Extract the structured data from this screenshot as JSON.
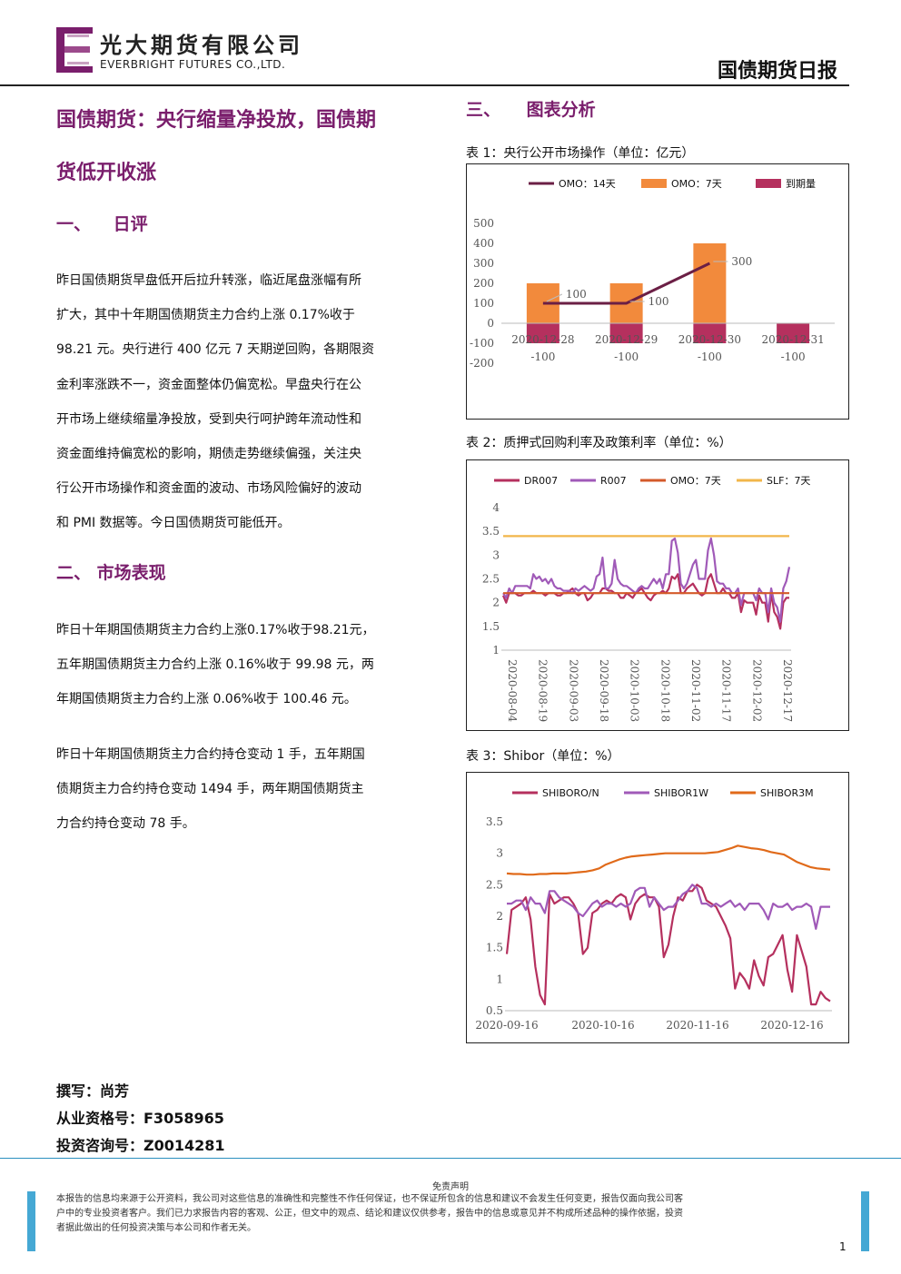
{
  "header": {
    "company_cn": "光大期货有限公司",
    "company_en": "EVERBRIGHT FUTURES CO.,LTD.",
    "report_name": "国债期货日报"
  },
  "colors": {
    "brand": "#7a1e6c",
    "footer_accent": "#45a8d4"
  },
  "left": {
    "title_line1": "国债期货：央行缩量净投放，国债期",
    "title_line2": "货低开收涨",
    "section1": {
      "num": "一、",
      "title": "日评"
    },
    "section1_lines": [
      "昨日国债期货早盘低开后拉升转涨，临近尾盘涨幅有所",
      "扩大，其中十年期国债期货主力合约上涨 0.17%收于",
      "98.21 元。央行进行 400 亿元 7 天期逆回购，各期限资",
      "金利率涨跌不一，资金面整体仍偏宽松。早盘央行在公",
      "开市场上继续缩量净投放，受到央行呵护跨年流动性和",
      "资金面维持偏宽松的影响，期债走势继续偏强，关注央",
      "行公开市场操作和资金面的波动、市场风险偏好的波动",
      "和 PMI 数据等。今日国债期货可能低开。"
    ],
    "section2": {
      "num": "二、",
      "title": "市场表现"
    },
    "section2_para1": [
      "昨日十年期国债期货主力合约上涨0.17%收于98.21元，",
      "五年期国债期货主力合约上涨 0.16%收于 99.98 元，两",
      "年期国债期货主力合约上涨 0.06%收于 100.46 元。"
    ],
    "section2_para2": [
      "昨日十年期国债期货主力合约持仓变动 1 手，五年期国",
      "债期货主力合约持仓变动 1494 手，两年期国债期货主",
      "力合约持仓变动 78 手。"
    ],
    "author": "撰写：尚芳",
    "license": "从业资格号：F3058965",
    "advisory": "投资咨询号：Z0014281"
  },
  "right": {
    "section3": {
      "num": "三、",
      "title": "图表分析"
    },
    "chart1_caption": "表 1：央行公开市场操作（单位：亿元）",
    "chart2_caption": "表 2：质押式回购利率及政策利率（单位：%）",
    "chart3_caption": "表 3：Shibor（单位：%）"
  },
  "chart_data": [
    {
      "type": "bar",
      "categories": [
        "2020-12-28",
        "2020-12-29",
        "2020-12-30",
        "2020-12-31"
      ],
      "series": [
        {
          "name": "OMO：14天",
          "kind": "line",
          "color": "#6b1f45",
          "values": [
            100,
            100,
            300,
            null
          ]
        },
        {
          "name": "OMO：7天",
          "kind": "bar",
          "color": "#f28a3c",
          "values": [
            200,
            200,
            400,
            0
          ]
        },
        {
          "name": "到期量",
          "kind": "bar",
          "color": "#b5305e",
          "values": [
            -100,
            -100,
            -100,
            -100
          ]
        }
      ],
      "data_labels": [
        {
          "text": "100",
          "category": "2020-12-28",
          "value": 100
        },
        {
          "text": "100",
          "category": "2020-12-29",
          "value": 100
        },
        {
          "text": "300",
          "category": "2020-12-30",
          "value": 300
        },
        {
          "text": "-100",
          "category": "2020-12-28",
          "value": -100
        },
        {
          "text": "-100",
          "category": "2020-12-29",
          "value": -100
        },
        {
          "text": "-100",
          "category": "2020-12-30",
          "value": -100
        },
        {
          "text": "-100",
          "category": "2020-12-31",
          "value": -100
        }
      ],
      "yticks": [
        "500",
        "400",
        "300",
        "200",
        "100",
        "0",
        "-100",
        "-200"
      ],
      "ylim": [
        -200,
        500
      ],
      "legend": "top"
    },
    {
      "type": "line",
      "xticks": [
        "2020-08-04",
        "2020-08-19",
        "2020-09-03",
        "2020-09-18",
        "2020-10-03",
        "2020-10-18",
        "2020-11-02",
        "2020-11-17",
        "2020-12-02",
        "2020-12-17"
      ],
      "yticks": [
        "4",
        "3.5",
        "3",
        "2.5",
        "2",
        "1.5",
        "1"
      ],
      "ylim": [
        1,
        4
      ],
      "series": [
        {
          "name": "DR007",
          "color": "#b5305e",
          "values": [
            2.15,
            2.0,
            2.2,
            2.2,
            2.2,
            2.15,
            2.15,
            2.2,
            2.2,
            2.2,
            2.25,
            2.2,
            2.2,
            2.2,
            2.15,
            2.2,
            2.2,
            2.2,
            2.15,
            2.15,
            2.2,
            2.2,
            2.25,
            2.3,
            2.2,
            2.15,
            2.2,
            2.2,
            2.05,
            2.1,
            2.2,
            2.2,
            2.2,
            2.3,
            2.3,
            2.25,
            2.25,
            2.2,
            2.2,
            2.1,
            2.1,
            2.2,
            2.15,
            2.1,
            2.2,
            2.25,
            2.3,
            2.2,
            2.1,
            2.05,
            2.15,
            2.2,
            2.2,
            2.25,
            2.2,
            2.3,
            2.55,
            2.5,
            2.6,
            2.2,
            2.2,
            2.3,
            2.35,
            2.4,
            2.3,
            2.2,
            2.15,
            2.2,
            2.5,
            2.6,
            2.4,
            2.2,
            2.2,
            2.3,
            2.2,
            2.2,
            2.1,
            2.1,
            2.2,
            1.8,
            2.05,
            2.0,
            2.0,
            2.0,
            1.75,
            2.15,
            2.0,
            2.0,
            1.6,
            2.2,
            1.8,
            1.7,
            1.45,
            2.0,
            2.1,
            2.1
          ]
        },
        {
          "name": "R007",
          "color": "#a05ab8",
          "values": [
            2.2,
            2.1,
            2.3,
            2.2,
            2.35,
            2.35,
            2.35,
            2.35,
            2.35,
            2.3,
            2.6,
            2.5,
            2.55,
            2.45,
            2.5,
            2.4,
            2.5,
            2.35,
            2.3,
            2.3,
            2.25,
            2.25,
            2.25,
            2.2,
            2.3,
            2.25,
            2.3,
            2.35,
            2.3,
            2.25,
            2.3,
            2.55,
            2.6,
            2.95,
            2.3,
            2.3,
            2.4,
            2.9,
            2.5,
            2.4,
            2.35,
            2.35,
            2.3,
            2.25,
            2.2,
            2.3,
            2.35,
            2.3,
            2.3,
            2.4,
            2.5,
            2.4,
            2.5,
            2.3,
            2.6,
            2.6,
            3.3,
            3.35,
            3.05,
            2.4,
            2.3,
            2.4,
            2.6,
            2.8,
            2.9,
            2.5,
            2.5,
            2.5,
            3.1,
            3.35,
            3.0,
            2.45,
            2.4,
            2.4,
            2.3,
            2.3,
            2.2,
            2.2,
            2.3,
            1.95,
            2.2,
            2.2,
            2.2,
            2.2,
            2.05,
            2.3,
            2.2,
            2.2,
            1.8,
            2.3,
            2.0,
            1.9,
            1.6,
            2.3,
            2.45,
            2.75
          ]
        },
        {
          "name": "OMO：7天",
          "color": "#d45a2a",
          "values": [
            2.2,
            2.2
          ]
        },
        {
          "name": "SLF：7天",
          "color": "#f2b64a",
          "values": [
            3.4,
            3.4
          ]
        }
      ],
      "legend": "top"
    },
    {
      "type": "line",
      "xticks": [
        "2020-09-16",
        "2020-10-16",
        "2020-11-16",
        "2020-12-16"
      ],
      "yticks": [
        "3.5",
        "3",
        "2.5",
        "2",
        "1.5",
        "1",
        "0.5"
      ],
      "ylim": [
        0.5,
        3.5
      ],
      "series": [
        {
          "name": "SHIBORO/N",
          "color": "#b5305e",
          "values": [
            1.4,
            2.1,
            2.15,
            2.2,
            2.3,
            1.95,
            1.2,
            0.75,
            0.6,
            2.35,
            2.2,
            2.25,
            2.3,
            2.3,
            2.2,
            2.05,
            1.4,
            1.5,
            2.05,
            2.1,
            2.2,
            2.25,
            2.2,
            2.3,
            2.35,
            2.3,
            1.95,
            2.2,
            2.3,
            2.35,
            2.3,
            2.3,
            2.15,
            1.35,
            1.55,
            2.0,
            2.3,
            2.25,
            2.4,
            2.4,
            2.5,
            2.45,
            2.25,
            2.2,
            2.15,
            2.0,
            1.85,
            1.65,
            0.85,
            1.1,
            1.0,
            0.85,
            1.3,
            1.05,
            0.9,
            1.35,
            1.4,
            1.55,
            1.7,
            1.15,
            0.8,
            1.7,
            1.45,
            1.2,
            0.6,
            0.6,
            0.8,
            0.7,
            0.65
          ]
        },
        {
          "name": "SHIBOR1W",
          "color": "#a05ab8",
          "values": [
            2.2,
            2.2,
            2.25,
            2.25,
            2.1,
            2.3,
            2.2,
            2.2,
            2.05,
            2.4,
            2.4,
            2.3,
            2.25,
            2.2,
            2.15,
            2.05,
            2.0,
            2.1,
            2.2,
            2.25,
            2.15,
            2.2,
            2.2,
            2.15,
            2.2,
            2.15,
            2.2,
            2.4,
            2.45,
            2.45,
            2.15,
            2.3,
            2.2,
            2.1,
            2.15,
            2.15,
            2.25,
            2.35,
            2.4,
            2.5,
            2.45,
            2.2,
            2.2,
            2.15,
            2.2,
            2.15,
            2.2,
            2.25,
            2.15,
            2.2,
            2.1,
            2.2,
            2.2,
            2.2,
            2.1,
            1.95,
            2.2,
            2.15,
            2.15,
            2.2,
            2.1,
            2.15,
            2.15,
            2.2,
            2.15,
            1.8,
            2.15,
            2.15,
            2.15
          ]
        },
        {
          "name": "SHIBOR3M",
          "color": "#e06a1a",
          "values": [
            2.68,
            2.67,
            2.67,
            2.66,
            2.66,
            2.67,
            2.67,
            2.68,
            2.68,
            2.68,
            2.69,
            2.7,
            2.71,
            2.73,
            2.76,
            2.82,
            2.86,
            2.9,
            2.93,
            2.95,
            2.96,
            2.97,
            2.98,
            2.99,
            3.0,
            3.0,
            3.0,
            3.0,
            3.0,
            3.0,
            3.0,
            3.01,
            3.02,
            3.05,
            3.08,
            3.12,
            3.1,
            3.08,
            3.07,
            3.05,
            3.02,
            3.0,
            2.98,
            2.92,
            2.86,
            2.82,
            2.78,
            2.76,
            2.75,
            2.74
          ]
        }
      ],
      "legend": "top"
    }
  ],
  "footer": {
    "disclaimer_title": "免责声明",
    "disclaimer_lines": [
      "本报告的信息均来源于公开资料，我公司对这些信息的准确性和完整性不作任何保证，也不保证所包含的信息和建议不会发生任何变更，报告仅面向我公司客",
      "户中的专业投资者客户。我们已力求报告内容的客观、公正，但文中的观点、结论和建议仅供参考，报告中的信息或意见并不构成所述品种的操作依据，投资",
      "者据此做出的任何投资决策与本公司和作者无关。"
    ],
    "page_number": "1"
  }
}
